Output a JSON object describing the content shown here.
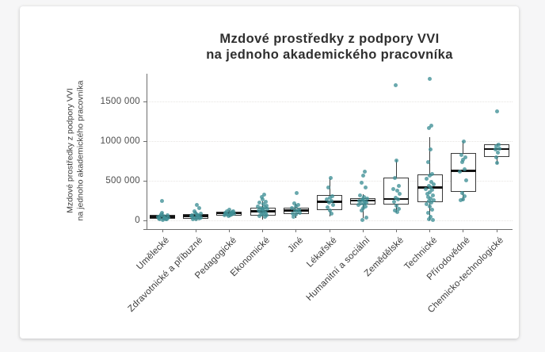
{
  "page": {
    "background_color": "#f6f6f7",
    "card_color": "#ffffff"
  },
  "chart_data": {
    "type": "boxplot",
    "title_lines": [
      "Mzdové prostředky z podpory VVI",
      "na jednoho akademického pracovníka"
    ],
    "ylabel_lines": [
      "Mzdové prostředky z podpory VVI",
      "na jednoho akademického pracovníka"
    ],
    "xlabel": "",
    "grid": "horizontal-dotted",
    "legend": "none",
    "point_color": "#3f8f96",
    "box_border_color": "#3a3a3a",
    "median_color": "#111111",
    "ylim": [
      0,
      1850000
    ],
    "y_ticks": [
      {
        "label": "0",
        "value": 0
      },
      {
        "label": "500 000",
        "value": 500000
      },
      {
        "label": "1000 000",
        "value": 1000000
      },
      {
        "label": "1500 000",
        "value": 1500000
      }
    ],
    "categories": [
      {
        "label": "Umělecké",
        "box": {
          "low": 5000,
          "q1": 20000,
          "median": 45000,
          "q3": 75000,
          "high": 105000
        },
        "points": [
          [
            -4,
            15000
          ],
          [
            2,
            30000
          ],
          [
            6,
            62000
          ],
          [
            -6,
            46000
          ],
          [
            0,
            9000
          ],
          [
            3,
            23000
          ],
          [
            -2,
            72000
          ],
          [
            7,
            40000
          ],
          [
            -5,
            26000
          ],
          [
            1,
            56000
          ],
          [
            4,
            13000
          ],
          [
            -1,
            98000
          ],
          [
            2,
            35000
          ],
          [
            -3,
            52000
          ],
          [
            5,
            20000
          ],
          [
            -1,
            250000
          ]
        ]
      },
      {
        "label": "Zdravotnické a příbuzné",
        "box": {
          "low": 5000,
          "q1": 25000,
          "median": 55000,
          "q3": 85000,
          "high": 115000
        },
        "points": [
          [
            1,
            200000
          ],
          [
            4,
            160000
          ],
          [
            -2,
            112000
          ],
          [
            6,
            82000
          ],
          [
            -5,
            62000
          ],
          [
            1,
            47000
          ],
          [
            -3,
            32000
          ],
          [
            4,
            22000
          ],
          [
            0,
            12000
          ],
          [
            2,
            67000
          ],
          [
            -6,
            52000
          ],
          [
            6,
            37000
          ],
          [
            -1,
            92000
          ],
          [
            3,
            57000
          ],
          [
            -4,
            17000
          ],
          [
            1,
            77000
          ]
        ]
      },
      {
        "label": "Pedagogické",
        "box": {
          "low": 40000,
          "q1": 60000,
          "median": 88000,
          "q3": 115000,
          "high": 135000
        },
        "points": [
          [
            0,
            132000
          ],
          [
            -3,
            117000
          ],
          [
            4,
            102000
          ],
          [
            -5,
            96000
          ],
          [
            2,
            86000
          ],
          [
            6,
            81000
          ],
          [
            -2,
            76000
          ],
          [
            3,
            71000
          ],
          [
            -6,
            66000
          ],
          [
            1,
            61000
          ],
          [
            -1,
            56000
          ],
          [
            5,
            111000
          ],
          [
            2,
            92000
          ],
          [
            -4,
            84000
          ]
        ]
      },
      {
        "label": "Ekonomické",
        "box": {
          "low": 15000,
          "q1": 60000,
          "median": 115000,
          "q3": 165000,
          "high": 240000
        },
        "points": [
          [
            2,
            330000
          ],
          [
            -1,
            298000
          ],
          [
            0,
            262000
          ],
          [
            4,
            240000
          ],
          [
            -4,
            221000
          ],
          [
            1,
            201000
          ],
          [
            5,
            186000
          ],
          [
            -6,
            171000
          ],
          [
            3,
            161000
          ],
          [
            -2,
            151000
          ],
          [
            6,
            141000
          ],
          [
            0,
            131000
          ],
          [
            -5,
            121000
          ],
          [
            2,
            111000
          ],
          [
            -3,
            101000
          ],
          [
            4,
            91000
          ],
          [
            1,
            81000
          ],
          [
            -1,
            71000
          ],
          [
            5,
            61000
          ],
          [
            -4,
            51000
          ],
          [
            3,
            41000
          ],
          [
            0,
            148000
          ]
        ]
      },
      {
        "label": "Jiné",
        "box": {
          "low": 35000,
          "q1": 80000,
          "median": 125000,
          "q3": 165000,
          "high": 215000
        },
        "points": [
          [
            1,
            350000
          ],
          [
            -2,
            215000
          ],
          [
            3,
            192000
          ],
          [
            0,
            172000
          ],
          [
            -5,
            152000
          ],
          [
            4,
            137000
          ],
          [
            -1,
            127000
          ],
          [
            2,
            112000
          ],
          [
            5,
            97000
          ],
          [
            -4,
            87000
          ],
          [
            0,
            72000
          ],
          [
            -3,
            42000
          ]
        ]
      },
      {
        "label": "Lékařské",
        "box": {
          "low": 55000,
          "q1": 125000,
          "median": 233000,
          "q3": 317000,
          "high": 535000
        },
        "points": [
          [
            1,
            540000
          ],
          [
            -2,
            420000
          ],
          [
            3,
            302000
          ],
          [
            0,
            281000
          ],
          [
            -4,
            262000
          ],
          [
            2,
            242000
          ],
          [
            -1,
            222000
          ],
          [
            4,
            192000
          ],
          [
            -3,
            162000
          ],
          [
            0,
            122000
          ],
          [
            2,
            82000
          ]
        ]
      },
      {
        "label": "Humanitní a sociální",
        "box": {
          "low": 35000,
          "q1": 200000,
          "median": 248000,
          "q3": 285000,
          "high": 330000
        },
        "points": [
          [
            2,
            618000
          ],
          [
            0,
            568000
          ],
          [
            -2,
            480000
          ],
          [
            3,
            412000
          ],
          [
            -4,
            312000
          ],
          [
            1,
            292000
          ],
          [
            5,
            277000
          ],
          [
            -1,
            262000
          ],
          [
            0,
            252000
          ],
          [
            -5,
            242000
          ],
          [
            2,
            232000
          ],
          [
            4,
            222000
          ],
          [
            -3,
            212000
          ],
          [
            1,
            202000
          ],
          [
            -6,
            192000
          ],
          [
            3,
            172000
          ],
          [
            0,
            152000
          ],
          [
            -2,
            122000
          ],
          [
            4,
            35000
          ],
          [
            -1,
            5000
          ]
        ]
      },
      {
        "label": "Zemědělské",
        "box": {
          "low": 100000,
          "q1": 200000,
          "median": 272000,
          "q3": 540000,
          "high": 757000
        },
        "points": [
          [
            0,
            757000
          ],
          [
            -2,
            540000
          ],
          [
            3,
            432000
          ],
          [
            -4,
            400000
          ],
          [
            1,
            380000
          ],
          [
            4,
            332000
          ],
          [
            -1,
            282000
          ],
          [
            2,
            268000
          ],
          [
            -3,
            232000
          ],
          [
            0,
            185000
          ],
          [
            3,
            150000
          ],
          [
            -2,
            130000
          ],
          [
            1,
            102000
          ],
          [
            -1,
            1710000
          ]
        ]
      },
      {
        "label": "Technické",
        "box": {
          "low": 5000,
          "q1": 235000,
          "median": 415000,
          "q3": 585000,
          "high": 1050000
        },
        "points": [
          [
            0,
            1785000
          ],
          [
            2,
            1200000
          ],
          [
            -1,
            1165000
          ],
          [
            1,
            900000
          ],
          [
            -2,
            733000
          ],
          [
            3,
            582000
          ],
          [
            0,
            562000
          ],
          [
            -4,
            522000
          ],
          [
            2,
            482000
          ],
          [
            5,
            452000
          ],
          [
            -1,
            432000
          ],
          [
            1,
            416000
          ],
          [
            -5,
            400000
          ],
          [
            3,
            382000
          ],
          [
            0,
            352000
          ],
          [
            -3,
            332000
          ],
          [
            4,
            312000
          ],
          [
            -2,
            292000
          ],
          [
            1,
            272000
          ],
          [
            5,
            256000
          ],
          [
            -1,
            242000
          ],
          [
            2,
            226000
          ],
          [
            -4,
            202000
          ],
          [
            0,
            172000
          ],
          [
            3,
            132000
          ],
          [
            -2,
            92000
          ],
          [
            1,
            42000
          ],
          [
            -1,
            12000
          ],
          [
            4,
            2000
          ]
        ]
      },
      {
        "label": "Přírodovědné",
        "box": {
          "low": 250000,
          "q1": 365000,
          "median": 625000,
          "q3": 850000,
          "high": 1000000
        },
        "points": [
          [
            1,
            1000000
          ],
          [
            -2,
            822000
          ],
          [
            3,
            792000
          ],
          [
            0,
            762000
          ],
          [
            -1,
            732000
          ],
          [
            2,
            642000
          ],
          [
            -4,
            612000
          ],
          [
            4,
            502000
          ],
          [
            -1,
            342000
          ],
          [
            2,
            302000
          ],
          [
            0,
            262000
          ],
          [
            -3,
            252000
          ]
        ]
      },
      {
        "label": "Chemicko-technologické",
        "box": {
          "low": 715000,
          "q1": 800000,
          "median": 900000,
          "q3": 960000,
          "high": 975000
        },
        "points": [
          [
            0,
            1380000
          ],
          [
            2,
            958000
          ],
          [
            -1,
            938000
          ],
          [
            3,
            905000
          ],
          [
            -2,
            893000
          ],
          [
            1,
            855000
          ],
          [
            -1,
            792000
          ],
          [
            0,
            722000
          ]
        ]
      }
    ]
  }
}
